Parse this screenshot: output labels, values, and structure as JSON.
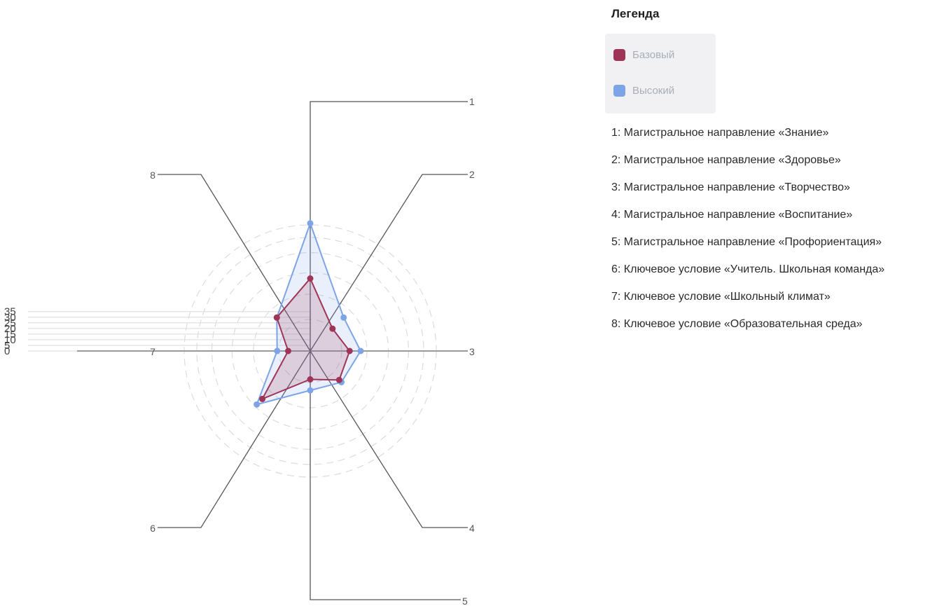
{
  "legend": {
    "title": "Легенда",
    "items": [
      {
        "label": "Базовый",
        "color": "#9e3557"
      },
      {
        "label": "Высокий",
        "color": "#7da4e6"
      }
    ]
  },
  "axis_descriptions": [
    "1: Магистральное направление «Знание»",
    "2: Магистральное направление «Здоровье»",
    "3: Магистральное направление «Творчество»",
    "4: Магистральное направление «Воспитание»",
    "5: Магистральное направление «Профориентация»",
    "6: Ключевое условие «Учитель. Школьная команда»",
    "7: Ключевое условие «Школьный климат»",
    "8: Ключевое условие «Образовательная среда»"
  ],
  "chart_data": {
    "type": "radar",
    "axes": [
      "1",
      "2",
      "3",
      "4",
      "5",
      "6",
      "7",
      "8"
    ],
    "radial_ticks": [
      "0",
      "5",
      "10",
      "15",
      "20",
      "25",
      "30",
      "35"
    ],
    "rlim": [
      0,
      40
    ],
    "series": [
      {
        "name": "Базовый",
        "color": "#9e3557",
        "values": [
          23,
          10,
          12.5,
          13,
          9,
          21.5,
          7,
          15
        ]
      },
      {
        "name": "Высокий",
        "color": "#7da4e6",
        "values": [
          40.5,
          15,
          16,
          14,
          12.5,
          24,
          10.5,
          15
        ]
      }
    ],
    "grid": true
  }
}
